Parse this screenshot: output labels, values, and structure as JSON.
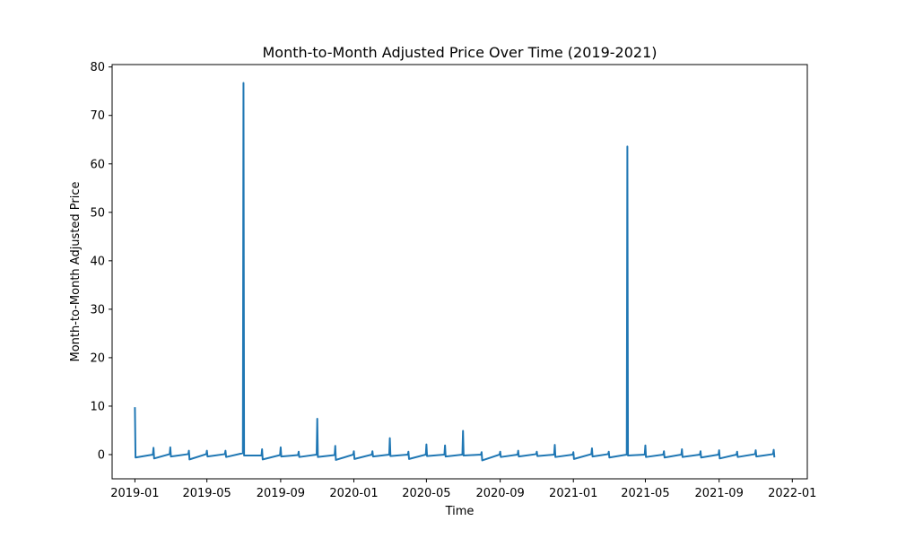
{
  "chart_data": {
    "type": "line",
    "title": "Month-to-Month Adjusted Price Over Time (2019-2021)",
    "xlabel": "Time",
    "ylabel": "Month-to-Month Adjusted Price",
    "xlim": [
      "2018-11-24",
      "2022-01-26"
    ],
    "ylim": [
      -5,
      80.5
    ],
    "x_ticks": [
      "2019-01",
      "2019-05",
      "2019-09",
      "2020-01",
      "2020-05",
      "2020-09",
      "2021-01",
      "2021-05",
      "2021-09",
      "2022-01"
    ],
    "y_ticks": [
      0,
      10,
      20,
      30,
      40,
      50,
      60,
      70,
      80
    ],
    "grid": false,
    "line_color": "#1f77b4",
    "series": [
      {
        "x": [
          "2019-01-01",
          "2019-01-02",
          "2019-01-31",
          "2019-02-01",
          "2019-02-02",
          "2019-02-28",
          "2019-03-01",
          "2019-03-02",
          "2019-03-31",
          "2019-04-01",
          "2019-04-02",
          "2019-04-30",
          "2019-05-01",
          "2019-05-02",
          "2019-05-31",
          "2019-06-01",
          "2019-06-02",
          "2019-06-30",
          "2019-07-01",
          "2019-07-02",
          "2019-07-31",
          "2019-08-01",
          "2019-08-02",
          "2019-08-31",
          "2019-09-01",
          "2019-09-02",
          "2019-09-30",
          "2019-10-01",
          "2019-10-02",
          "2019-10-31",
          "2019-11-01",
          "2019-11-02",
          "2019-11-30",
          "2019-12-01",
          "2019-12-02",
          "2019-12-31",
          "2020-01-01",
          "2020-01-02",
          "2020-01-31",
          "2020-02-01",
          "2020-02-02",
          "2020-02-29",
          "2020-03-01",
          "2020-03-02",
          "2020-03-31",
          "2020-04-01",
          "2020-04-02",
          "2020-04-30",
          "2020-05-01",
          "2020-05-02",
          "2020-05-31",
          "2020-06-01",
          "2020-06-02",
          "2020-06-30",
          "2020-07-01",
          "2020-07-02",
          "2020-07-31",
          "2020-08-01",
          "2020-08-02",
          "2020-08-31",
          "2020-09-01",
          "2020-09-02",
          "2020-09-30",
          "2020-10-01",
          "2020-10-02",
          "2020-10-31",
          "2020-11-01",
          "2020-11-02",
          "2020-11-30",
          "2020-12-01",
          "2020-12-02",
          "2020-12-31",
          "2021-01-01",
          "2021-01-02",
          "2021-01-31",
          "2021-02-01",
          "2021-02-02",
          "2021-02-28",
          "2021-03-01",
          "2021-03-02",
          "2021-03-31",
          "2021-04-01",
          "2021-04-02",
          "2021-04-30",
          "2021-05-01",
          "2021-05-02",
          "2021-05-31",
          "2021-06-01",
          "2021-06-02",
          "2021-06-30",
          "2021-07-01",
          "2021-07-02",
          "2021-07-31",
          "2021-08-01",
          "2021-08-02",
          "2021-08-31",
          "2021-09-01",
          "2021-09-02",
          "2021-09-30",
          "2021-10-01",
          "2021-10-02",
          "2021-10-31",
          "2021-11-01",
          "2021-11-02",
          "2021-11-30",
          "2021-12-01",
          "2021-12-02"
        ],
        "y": [
          9.6,
          -0.6,
          0.0,
          1.4,
          -0.8,
          0.1,
          1.5,
          -0.4,
          0.1,
          0.8,
          -1.0,
          0.1,
          0.8,
          -0.4,
          0.1,
          0.8,
          -0.5,
          0.3,
          76.7,
          -0.2,
          -0.2,
          1.1,
          -1.0,
          -0.1,
          1.5,
          -0.4,
          -0.1,
          0.6,
          -0.5,
          0.0,
          7.4,
          -0.5,
          -0.1,
          1.8,
          -1.1,
          0.0,
          0.7,
          -0.9,
          0.0,
          0.7,
          -0.4,
          0.0,
          3.4,
          -0.3,
          0.0,
          0.6,
          -0.9,
          0.0,
          2.1,
          -0.3,
          0.0,
          1.9,
          -0.4,
          0.0,
          4.9,
          -0.2,
          0.0,
          0.5,
          -1.2,
          0.0,
          0.6,
          -0.5,
          0.0,
          0.8,
          -0.4,
          0.1,
          0.6,
          -0.3,
          0.0,
          2.0,
          -0.5,
          0.0,
          0.5,
          -0.9,
          0.1,
          1.3,
          -0.4,
          0.1,
          0.6,
          -0.6,
          0.0,
          63.6,
          -0.2,
          0.0,
          1.9,
          -0.5,
          0.0,
          0.7,
          -0.6,
          0.0,
          1.1,
          -0.5,
          0.0,
          0.7,
          -0.6,
          0.0,
          0.9,
          -0.8,
          0.0,
          0.6,
          -0.5,
          0.1,
          0.9,
          -0.4,
          0.1,
          1.0,
          -0.4
        ]
      }
    ]
  }
}
